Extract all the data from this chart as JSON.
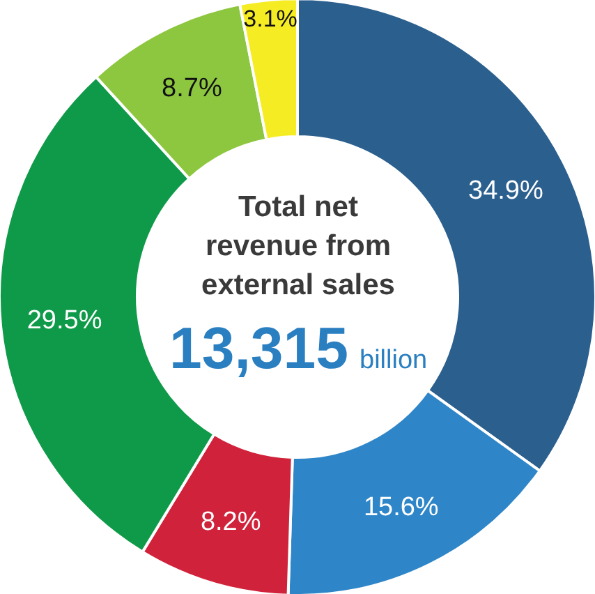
{
  "chart_data": {
    "type": "donut",
    "title": "Total net revenue from external sales",
    "annotations": [
      "13,315",
      "billion"
    ],
    "categories": [
      null,
      null,
      null,
      null,
      null,
      null
    ],
    "values": [
      34.9,
      15.6,
      8.2,
      29.5,
      8.7,
      3.1
    ],
    "colors": [
      "#2b5f8e",
      "#2e86c8",
      "#d0223a",
      "#0e9a48",
      "#8dc63f",
      "#f5ec23"
    ],
    "value_labels": [
      "34.9%",
      "15.6%",
      "8.2%",
      "29.5%",
      "8.7%",
      "3.1%"
    ]
  }
}
